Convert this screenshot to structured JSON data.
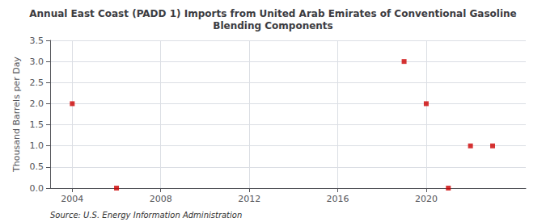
{
  "chart_data": {
    "type": "scatter",
    "title": "Annual East Coast (PADD 1) Imports from United Arab Emirates of Conventional Gasoline\nBlending Components",
    "ylabel": "Thousand Barrels per Day",
    "annotation": "Source: U.S. Energy Information Administration",
    "x": [
      2004,
      2006,
      2019,
      2020,
      2021,
      2022,
      2023
    ],
    "values": [
      2.0,
      0.0,
      3.0,
      2.0,
      0.0,
      1.0,
      1.0
    ],
    "color": "#cc0000",
    "marker": "square",
    "xlim": [
      2003.0,
      2024.5
    ],
    "xticks": [
      2004,
      2008,
      2012,
      2016,
      2020
    ],
    "ylim": [
      0.0,
      3.5
    ],
    "yticks": [
      {
        "value": 0,
        "label": "0.0"
      },
      0.5,
      {
        "value": 1,
        "label": "1.0"
      },
      1.5,
      {
        "value": 2,
        "label": "2.0"
      },
      2.5,
      {
        "value": 3,
        "label": "3.0"
      },
      3.5
    ],
    "grid": true
  }
}
